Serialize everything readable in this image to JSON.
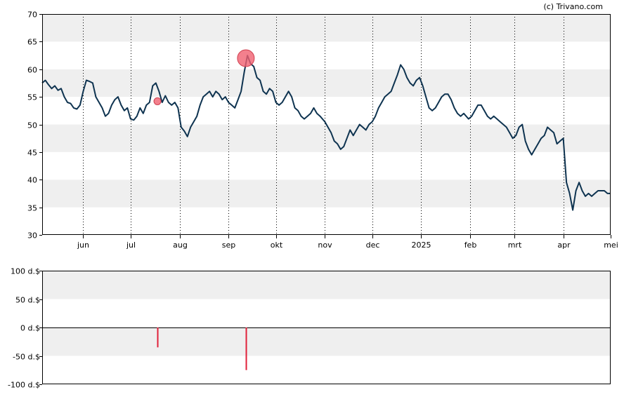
{
  "credit": "(c) Trivano.com",
  "chart_data": [
    {
      "type": "line",
      "title": "",
      "ylim": [
        30,
        70
      ],
      "yticks": [
        30,
        35,
        40,
        45,
        50,
        55,
        60,
        65,
        70
      ],
      "x_domain": [
        "2024-05-06",
        "2025-05-01"
      ],
      "months": [
        {
          "label": "jun",
          "date": "2024-06-01"
        },
        {
          "label": "jul",
          "date": "2024-07-01"
        },
        {
          "label": "aug",
          "date": "2024-08-01"
        },
        {
          "label": "sep",
          "date": "2024-09-01"
        },
        {
          "label": "okt",
          "date": "2024-10-01"
        },
        {
          "label": "nov",
          "date": "2024-11-01"
        },
        {
          "label": "dec",
          "date": "2024-12-01"
        },
        {
          "label": "2025",
          "date": "2025-01-01"
        },
        {
          "label": "feb",
          "date": "2025-02-01"
        },
        {
          "label": "mrt",
          "date": "2025-03-01"
        },
        {
          "label": "apr",
          "date": "2025-04-01"
        },
        {
          "label": "mei",
          "date": "2025-05-01"
        }
      ],
      "series": [
        {
          "color": "#0e3350",
          "points": [
            [
              "2024-05-06",
              57.5
            ],
            [
              "2024-05-08",
              58.0
            ],
            [
              "2024-05-10",
              57.2
            ],
            [
              "2024-05-12",
              56.5
            ],
            [
              "2024-05-14",
              57.0
            ],
            [
              "2024-05-16",
              56.2
            ],
            [
              "2024-05-18",
              56.5
            ],
            [
              "2024-05-20",
              55.0
            ],
            [
              "2024-05-22",
              54.0
            ],
            [
              "2024-05-24",
              53.8
            ],
            [
              "2024-05-26",
              53.0
            ],
            [
              "2024-05-28",
              52.8
            ],
            [
              "2024-05-30",
              53.5
            ],
            [
              "2024-06-01",
              56.0
            ],
            [
              "2024-06-03",
              58.0
            ],
            [
              "2024-06-05",
              57.8
            ],
            [
              "2024-06-07",
              57.5
            ],
            [
              "2024-06-09",
              55.0
            ],
            [
              "2024-06-11",
              54.0
            ],
            [
              "2024-06-13",
              53.0
            ],
            [
              "2024-06-15",
              51.5
            ],
            [
              "2024-06-17",
              52.0
            ],
            [
              "2024-06-19",
              53.5
            ],
            [
              "2024-06-21",
              54.5
            ],
            [
              "2024-06-23",
              55.0
            ],
            [
              "2024-06-25",
              53.5
            ],
            [
              "2024-06-27",
              52.5
            ],
            [
              "2024-06-29",
              53.0
            ],
            [
              "2024-07-01",
              51.0
            ],
            [
              "2024-07-03",
              50.8
            ],
            [
              "2024-07-05",
              51.5
            ],
            [
              "2024-07-07",
              53.0
            ],
            [
              "2024-07-09",
              52.0
            ],
            [
              "2024-07-11",
              53.5
            ],
            [
              "2024-07-13",
              54.0
            ],
            [
              "2024-07-15",
              57.0
            ],
            [
              "2024-07-17",
              57.5
            ],
            [
              "2024-07-19",
              56.0
            ],
            [
              "2024-07-21",
              54.0
            ],
            [
              "2024-07-23",
              55.2
            ],
            [
              "2024-07-25",
              54.0
            ],
            [
              "2024-07-27",
              53.5
            ],
            [
              "2024-07-29",
              54.0
            ],
            [
              "2024-07-31",
              53.0
            ],
            [
              "2024-08-02",
              49.5
            ],
            [
              "2024-08-04",
              48.8
            ],
            [
              "2024-08-06",
              47.8
            ],
            [
              "2024-08-08",
              49.5
            ],
            [
              "2024-08-10",
              50.5
            ],
            [
              "2024-08-12",
              51.5
            ],
            [
              "2024-08-14",
              53.5
            ],
            [
              "2024-08-16",
              55.0
            ],
            [
              "2024-08-18",
              55.5
            ],
            [
              "2024-08-20",
              56.0
            ],
            [
              "2024-08-22",
              55.0
            ],
            [
              "2024-08-24",
              56.0
            ],
            [
              "2024-08-26",
              55.5
            ],
            [
              "2024-08-28",
              54.5
            ],
            [
              "2024-08-30",
              55.0
            ],
            [
              "2024-09-01",
              54.0
            ],
            [
              "2024-09-03",
              53.5
            ],
            [
              "2024-09-05",
              53.0
            ],
            [
              "2024-09-07",
              54.5
            ],
            [
              "2024-09-09",
              56.0
            ],
            [
              "2024-09-11",
              59.5
            ],
            [
              "2024-09-13",
              62.5
            ],
            [
              "2024-09-15",
              61.0
            ],
            [
              "2024-09-17",
              60.5
            ],
            [
              "2024-09-19",
              58.5
            ],
            [
              "2024-09-21",
              58.0
            ],
            [
              "2024-09-23",
              56.0
            ],
            [
              "2024-09-25",
              55.5
            ],
            [
              "2024-09-27",
              56.5
            ],
            [
              "2024-09-29",
              56.0
            ],
            [
              "2024-10-01",
              54.0
            ],
            [
              "2024-10-03",
              53.5
            ],
            [
              "2024-10-05",
              54.0
            ],
            [
              "2024-10-07",
              55.0
            ],
            [
              "2024-10-09",
              56.0
            ],
            [
              "2024-10-11",
              55.0
            ],
            [
              "2024-10-13",
              53.0
            ],
            [
              "2024-10-15",
              52.5
            ],
            [
              "2024-10-17",
              51.5
            ],
            [
              "2024-10-19",
              51.0
            ],
            [
              "2024-10-21",
              51.5
            ],
            [
              "2024-10-23",
              52.0
            ],
            [
              "2024-10-25",
              53.0
            ],
            [
              "2024-10-27",
              52.0
            ],
            [
              "2024-10-29",
              51.5
            ],
            [
              "2024-11-01",
              50.5
            ],
            [
              "2024-11-03",
              49.5
            ],
            [
              "2024-11-05",
              48.5
            ],
            [
              "2024-11-07",
              47.0
            ],
            [
              "2024-11-09",
              46.5
            ],
            [
              "2024-11-11",
              45.5
            ],
            [
              "2024-11-13",
              46.0
            ],
            [
              "2024-11-15",
              47.5
            ],
            [
              "2024-11-17",
              49.0
            ],
            [
              "2024-11-19",
              48.0
            ],
            [
              "2024-11-21",
              49.0
            ],
            [
              "2024-11-23",
              50.0
            ],
            [
              "2024-11-25",
              49.5
            ],
            [
              "2024-11-27",
              49.0
            ],
            [
              "2024-11-29",
              50.0
            ],
            [
              "2024-12-01",
              50.5
            ],
            [
              "2024-12-03",
              51.5
            ],
            [
              "2024-12-05",
              53.0
            ],
            [
              "2024-12-07",
              54.0
            ],
            [
              "2024-12-09",
              55.0
            ],
            [
              "2024-12-11",
              55.5
            ],
            [
              "2024-12-13",
              56.0
            ],
            [
              "2024-12-15",
              57.5
            ],
            [
              "2024-12-17",
              59.0
            ],
            [
              "2024-12-19",
              60.8
            ],
            [
              "2024-12-21",
              60.0
            ],
            [
              "2024-12-23",
              58.5
            ],
            [
              "2024-12-25",
              57.5
            ],
            [
              "2024-12-27",
              57.0
            ],
            [
              "2024-12-29",
              58.0
            ],
            [
              "2024-12-31",
              58.5
            ],
            [
              "2025-01-02",
              57.0
            ],
            [
              "2025-01-04",
              55.0
            ],
            [
              "2025-01-06",
              53.0
            ],
            [
              "2025-01-08",
              52.5
            ],
            [
              "2025-01-10",
              53.0
            ],
            [
              "2025-01-12",
              54.0
            ],
            [
              "2025-01-14",
              55.0
            ],
            [
              "2025-01-16",
              55.5
            ],
            [
              "2025-01-18",
              55.5
            ],
            [
              "2025-01-20",
              54.5
            ],
            [
              "2025-01-22",
              53.0
            ],
            [
              "2025-01-24",
              52.0
            ],
            [
              "2025-01-26",
              51.5
            ],
            [
              "2025-01-28",
              52.0
            ],
            [
              "2025-01-31",
              51.0
            ],
            [
              "2025-02-02",
              51.5
            ],
            [
              "2025-02-04",
              52.5
            ],
            [
              "2025-02-06",
              53.5
            ],
            [
              "2025-02-08",
              53.5
            ],
            [
              "2025-02-10",
              52.5
            ],
            [
              "2025-02-12",
              51.5
            ],
            [
              "2025-02-14",
              51.0
            ],
            [
              "2025-02-16",
              51.5
            ],
            [
              "2025-02-18",
              51.0
            ],
            [
              "2025-02-20",
              50.5
            ],
            [
              "2025-02-22",
              50.0
            ],
            [
              "2025-02-24",
              49.5
            ],
            [
              "2025-02-26",
              48.5
            ],
            [
              "2025-02-28",
              47.5
            ],
            [
              "2025-03-02",
              48.0
            ],
            [
              "2025-03-04",
              49.5
            ],
            [
              "2025-03-06",
              50.0
            ],
            [
              "2025-03-08",
              47.0
            ],
            [
              "2025-03-10",
              45.5
            ],
            [
              "2025-03-12",
              44.5
            ],
            [
              "2025-03-14",
              45.5
            ],
            [
              "2025-03-16",
              46.5
            ],
            [
              "2025-03-18",
              47.5
            ],
            [
              "2025-03-20",
              48.0
            ],
            [
              "2025-03-22",
              49.5
            ],
            [
              "2025-03-24",
              49.0
            ],
            [
              "2025-03-26",
              48.5
            ],
            [
              "2025-03-28",
              46.5
            ],
            [
              "2025-03-30",
              47.0
            ],
            [
              "2025-04-01",
              47.5
            ],
            [
              "2025-04-03",
              39.5
            ],
            [
              "2025-04-05",
              37.5
            ],
            [
              "2025-04-07",
              34.5
            ],
            [
              "2025-04-09",
              38.0
            ],
            [
              "2025-04-11",
              39.5
            ],
            [
              "2025-04-13",
              38.0
            ],
            [
              "2025-04-15",
              37.0
            ],
            [
              "2025-04-17",
              37.5
            ],
            [
              "2025-04-19",
              37.0
            ],
            [
              "2025-04-21",
              37.5
            ],
            [
              "2025-04-23",
              38.0
            ],
            [
              "2025-04-25",
              38.0
            ],
            [
              "2025-04-27",
              38.0
            ],
            [
              "2025-04-29",
              37.5
            ],
            [
              "2025-05-01",
              37.5
            ]
          ]
        }
      ],
      "markers": [
        {
          "date": "2024-07-18",
          "value": 54.2,
          "size": "small",
          "color": "#f06070"
        },
        {
          "date": "2024-09-12",
          "value": 62.0,
          "size": "large",
          "color": "#f06070"
        }
      ]
    },
    {
      "type": "bar",
      "title": "",
      "ylim": [
        -100,
        100
      ],
      "yticks": [
        {
          "value": 100,
          "label": "100 d.$"
        },
        {
          "value": 50,
          "label": "50 d.$"
        },
        {
          "value": 0,
          "label": "0 d.$"
        },
        {
          "value": -50,
          "label": "-50 d.$"
        },
        {
          "value": -100,
          "label": "-100 d.$"
        }
      ],
      "bar_color": "#e0203a",
      "bars": [
        {
          "date": "2024-07-18",
          "value": -35
        },
        {
          "date": "2024-09-12",
          "value": -75
        }
      ]
    }
  ]
}
